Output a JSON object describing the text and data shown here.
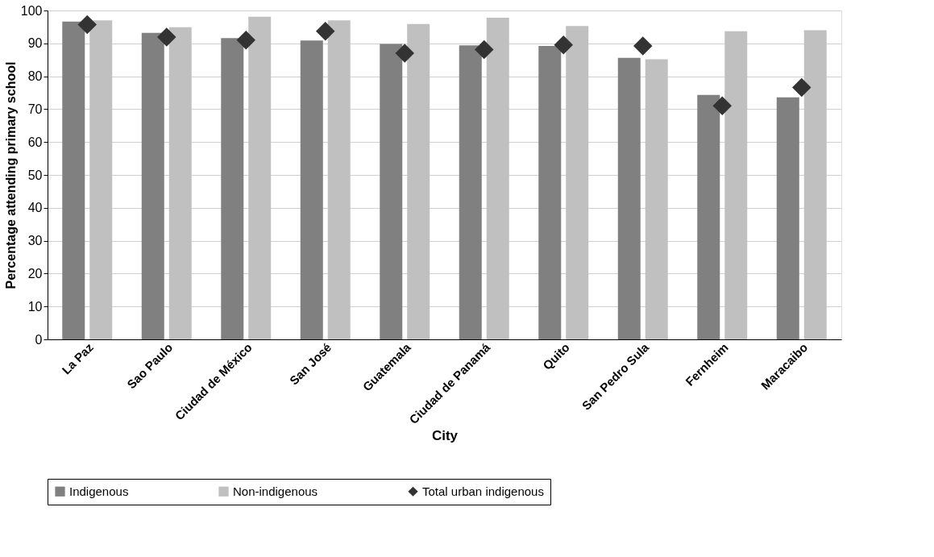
{
  "chart_data": {
    "type": "bar",
    "xlabel": "City",
    "ylabel": "Percentage attending primary school",
    "categories": [
      "La Paz",
      "Sao Paulo",
      "Ciudad de México",
      "San José",
      "Guatemala",
      "Ciudad de Panamá",
      "Quito",
      "San Pedro Sula",
      "Fernheim",
      "Maracaibo"
    ],
    "series": [
      {
        "name": "Indigenous",
        "color": "#808080",
        "values": [
          96.6,
          93.2,
          91.6,
          90.9,
          89.8,
          89.4,
          89.2,
          85.6,
          74.3,
          73.6
        ]
      },
      {
        "name": "Non-indigenous",
        "color": "#c0c0c0",
        "values": [
          97.0,
          94.9,
          98.1,
          97.0,
          95.9,
          97.8,
          95.3,
          85.2,
          93.7,
          94.0
        ]
      },
      {
        "name": "Total urban indigenous",
        "type": "scatter",
        "color": "#333333",
        "values": [
          95.7,
          91.9,
          91.0,
          93.7,
          87.0,
          88.1,
          89.5,
          89.2,
          71.0,
          76.6
        ]
      }
    ],
    "ylim": [
      0,
      100
    ],
    "yticks": [
      0,
      10,
      20,
      30,
      40,
      50,
      60,
      70,
      80,
      90,
      100
    ],
    "grid": "y",
    "legend": "bottom",
    "marker": "diamond"
  }
}
